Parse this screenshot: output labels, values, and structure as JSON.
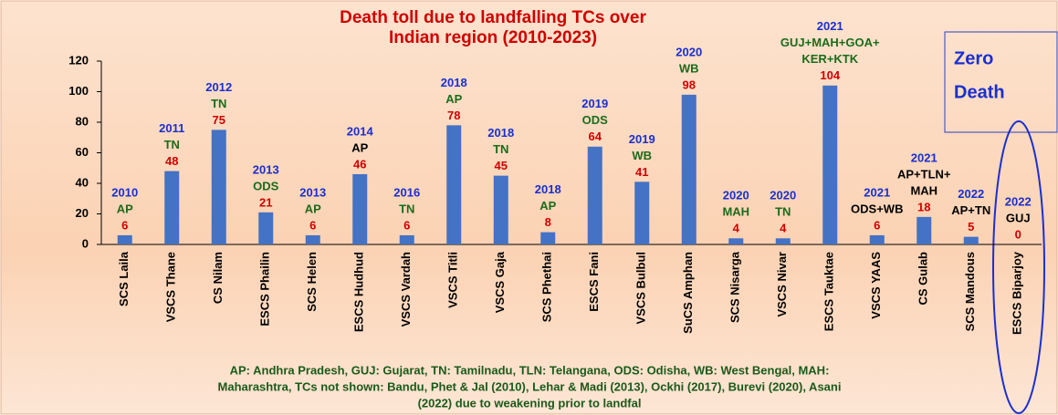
{
  "chart_data": {
    "type": "bar",
    "title": [
      "Death toll due to landfalling TCs over",
      "Indian region (2010-2023)"
    ],
    "categories": [
      "SCS Laila",
      "VSCS Thane",
      "CS Nilam",
      "ESCS Phailin",
      "SCS Helen",
      "ESCS Hudhud",
      "VSCS Vardah",
      "VSCS Titli",
      "VSCS Gaja",
      "SCS Phethai",
      "ESCS Fani",
      "VSCS Bulbul",
      "SuCS Amphan",
      "SCS Nisarga",
      "VSCS Nivar",
      "ESCS Tauktae",
      "VSCS YAAS",
      "CS Gulab",
      "SCS Mandous",
      "ESCS Biparjoy"
    ],
    "values": [
      6,
      48,
      75,
      21,
      6,
      46,
      6,
      78,
      45,
      8,
      64,
      41,
      98,
      4,
      4,
      104,
      6,
      18,
      5,
      0
    ],
    "years": [
      "2010",
      "2011",
      "2012",
      "2013",
      "2013",
      "2014",
      "2016",
      "2018",
      "2018",
      "2018",
      "2019",
      "2019",
      "2020",
      "2020",
      "2020",
      "2021",
      "2021",
      "2021",
      "2022",
      "2022"
    ],
    "states": [
      [
        "AP"
      ],
      [
        "TN"
      ],
      [
        "TN"
      ],
      [
        "ODS"
      ],
      [
        "AP"
      ],
      [
        "AP"
      ],
      [
        "TN"
      ],
      [
        "AP"
      ],
      [
        "TN"
      ],
      [
        "AP"
      ],
      [
        "ODS"
      ],
      [
        "WB"
      ],
      [
        "WB"
      ],
      [
        "MAH"
      ],
      [
        "TN"
      ],
      [
        "GUJ+MAH+GOA+",
        "KER+KTK"
      ],
      [
        "ODS+WB"
      ],
      [
        "AP+TLN+",
        "MAH"
      ],
      [
        "AP+TN"
      ],
      [
        "GUJ"
      ]
    ],
    "state_colors": [
      "#1a6b1a",
      "#1a6b1a",
      "#1a6b1a",
      "#1a6b1a",
      "#1a6b1a",
      "#000000",
      "#1a6b1a",
      "#1a6b1a",
      "#1a6b1a",
      "#1a6b1a",
      "#1a6b1a",
      "#1a6b1a",
      "#1a6b1a",
      "#1a6b1a",
      "#1a6b1a",
      "#1a6b1a",
      "#000000",
      "#000000",
      "#000000",
      "#000000"
    ],
    "color": "#4472c4",
    "ylim": [
      0,
      120
    ],
    "yticks": [
      0,
      20,
      40,
      60,
      80,
      100,
      120
    ],
    "annotation": [
      "Zero",
      "Death"
    ],
    "footnote": [
      "AP: Andhra Pradesh, GUJ: Gujarat, TN: Tamilnadu, TLN: Telangana, ODS: Odisha, WB: West Bengal, MAH:",
      "Maharashtra, TCs not shown: Bandu, Phet & Jal (2010), Lehar & Madi (2013), Ockhi (2017), Burevi (2020), Asani",
      "(2022) due to weakening prior to landfal"
    ]
  }
}
